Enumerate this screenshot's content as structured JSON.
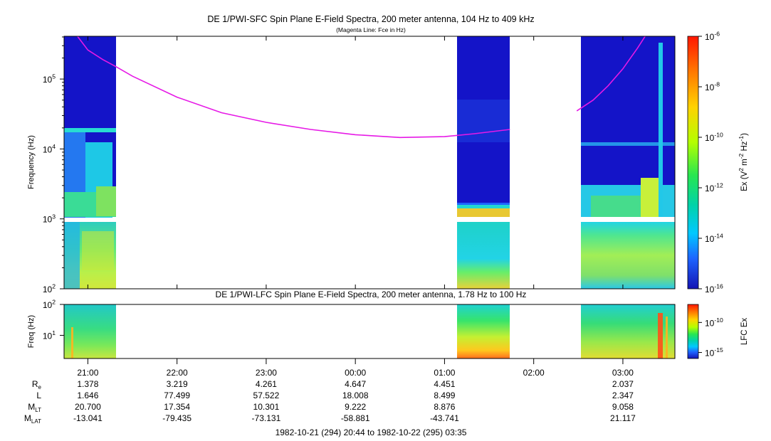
{
  "figure": {
    "title": "DE 1/PWI-SFC  Spin Plane E-Field Spectra, 200 meter antenna, 104 Hz to 409 kHz",
    "subtitle": "(Magenta Line: Fce in Hz)",
    "footer": "1982-10-21 (294) 20:44 to 1982-10-22 (295) 03:35",
    "colors": {
      "background": "#ffffff",
      "spectrogram_base": "#1414c8",
      "fce_line": "#e619e6"
    }
  },
  "ephemeris": {
    "row_labels": [
      {
        "main": "R",
        "sub": "e"
      },
      {
        "main": "L",
        "sub": ""
      },
      {
        "main": "M",
        "sub": "LT"
      },
      {
        "main": "M",
        "sub": "LAT"
      }
    ],
    "columns": [
      {
        "time": "21:00",
        "values": [
          "1.378",
          "1.646",
          "20.700",
          "-13.041"
        ]
      },
      {
        "time": "22:00",
        "values": [
          "3.219",
          "77.499",
          "17.354",
          "-79.435"
        ]
      },
      {
        "time": "23:00",
        "values": [
          "4.261",
          "57.522",
          "10.301",
          "-73.131"
        ]
      },
      {
        "time": "00:00",
        "values": [
          "4.647",
          "18.008",
          "9.222",
          "-58.881"
        ]
      },
      {
        "time": "01:00",
        "values": [
          "4.451",
          "8.499",
          "8.876",
          "-43.741"
        ]
      },
      {
        "time": "02:00",
        "values": [
          "",
          "",
          "",
          ""
        ]
      },
      {
        "time": "03:00",
        "values": [
          "2.037",
          "2.347",
          "9.058",
          "21.117"
        ]
      }
    ]
  },
  "chart_data": [
    {
      "type": "heatmap",
      "title": "DE 1/PWI-SFC  Spin Plane E-Field Spectra, 200 meter antenna, 104 Hz to 409 kHz",
      "subtitle": "(Magenta Line: Fce in Hz)",
      "xlabel": "",
      "ylabel": "Frequency (Hz)",
      "yscale": "log",
      "ylim": [
        100,
        409000
      ],
      "xlim": [
        "1982-10-21T20:44",
        "1982-10-22T03:35"
      ],
      "x_ticks": [
        "21:00",
        "22:00",
        "23:00",
        "00:00",
        "01:00",
        "02:00",
        "03:00"
      ],
      "y_ticks": [
        {
          "base": "10",
          "exp": "2"
        },
        {
          "base": "10",
          "exp": "3"
        },
        {
          "base": "10",
          "exp": "4"
        },
        {
          "base": "10",
          "exp": "5"
        }
      ],
      "data_intervals": [
        [
          "20:44",
          "21:19"
        ],
        [
          "01:08",
          "01:44"
        ],
        [
          "02:29",
          "03:35"
        ]
      ],
      "gap_frequency_band_hz": [
        870,
        1050
      ],
      "colorbar": {
        "label_parts": [
          "Ex (V",
          "2",
          " m",
          "-2",
          " Hz",
          "-1",
          ")"
        ],
        "scale": "log",
        "range": [
          1e-16,
          1e-06
        ],
        "ticks": [
          {
            "base": "10",
            "exp": "-6"
          },
          {
            "base": "10",
            "exp": "-8"
          },
          {
            "base": "10",
            "exp": "-10"
          },
          {
            "base": "10",
            "exp": "-12"
          },
          {
            "base": "10",
            "exp": "-14"
          },
          {
            "base": "10",
            "exp": "-16"
          }
        ]
      },
      "series": [
        {
          "name": "Fce",
          "units": "Hz",
          "points": [
            [
              "20:53",
              409000
            ],
            [
              "21:00",
              260000
            ],
            [
              "21:10",
              190000
            ],
            [
              "21:19",
              150000
            ],
            [
              "21:30",
              110000
            ],
            [
              "22:00",
              55000
            ],
            [
              "22:30",
              33000
            ],
            [
              "23:00",
              24000
            ],
            [
              "23:30",
              19000
            ],
            [
              "00:00",
              16000
            ],
            [
              "00:30",
              14600
            ],
            [
              "01:00",
              15000
            ],
            [
              "01:20",
              16500
            ],
            [
              "01:44",
              19000
            ]
          ]
        },
        {
          "name": "Fce",
          "units": "Hz",
          "points": [
            [
              "02:29",
              35000
            ],
            [
              "02:40",
              50000
            ],
            [
              "02:50",
              80000
            ],
            [
              "03:00",
              140000
            ],
            [
              "03:10",
              280000
            ],
            [
              "03:15",
              409000
            ]
          ]
        }
      ]
    },
    {
      "type": "heatmap",
      "title": "DE 1/PWI-LFC  Spin Plane E-Field Spectra, 200 meter antenna, 1.78 Hz to 100 Hz",
      "xlabel": "",
      "ylabel": "Freq (Hz)",
      "yscale": "log",
      "ylim": [
        1.78,
        100
      ],
      "y_ticks": [
        {
          "base": "10",
          "exp": "1"
        },
        {
          "base": "10",
          "exp": "2"
        }
      ],
      "data_intervals": [
        [
          "20:44",
          "21:19"
        ],
        [
          "01:08",
          "01:44"
        ],
        [
          "02:29",
          "03:35"
        ]
      ],
      "colorbar": {
        "label": "LFC Ex",
        "scale": "log",
        "range": [
          1e-16,
          1e-07
        ],
        "ticks": [
          {
            "base": "10",
            "exp": "-10"
          },
          {
            "base": "10",
            "exp": "-15"
          }
        ]
      }
    }
  ]
}
